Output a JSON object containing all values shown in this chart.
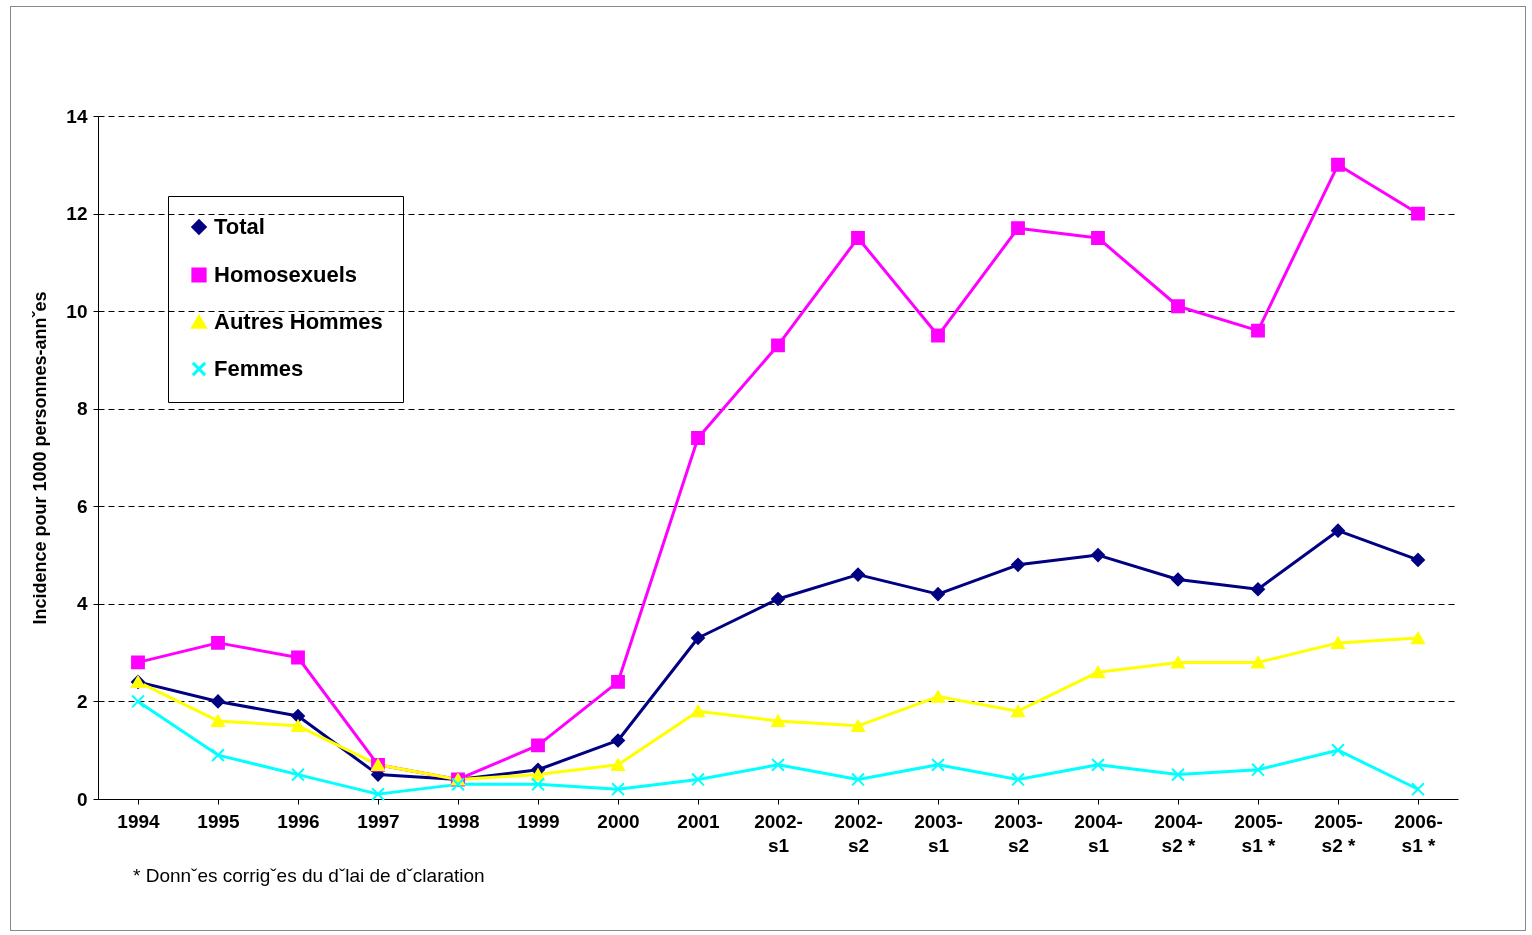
{
  "chart_data": {
    "type": "line",
    "ylabel": "Incidence pour 1000 personnes-annˇes",
    "categories": [
      "1994",
      "1995",
      "1996",
      "1997",
      "1998",
      "1999",
      "2000",
      "2001",
      "2002-\ns1",
      "2002-\ns2",
      "2003-\ns1",
      "2003-\ns2",
      "2004-\ns1",
      "2004-\ns2 *",
      "2005-\ns1 *",
      "2005-\ns2 *",
      "2006-\ns1 *"
    ],
    "series": [
      {
        "name": "Total",
        "color": "#000080",
        "marker": "diamond",
        "values": [
          2.4,
          2.0,
          1.7,
          0.5,
          0.4,
          0.6,
          1.2,
          3.3,
          4.1,
          4.6,
          4.2,
          4.8,
          5.0,
          4.5,
          4.3,
          5.5,
          4.9
        ]
      },
      {
        "name": "Homosexuels",
        "color": "#ff00ff",
        "marker": "square",
        "values": [
          2.8,
          3.2,
          2.9,
          0.7,
          0.4,
          1.1,
          2.4,
          7.4,
          9.3,
          11.5,
          9.5,
          11.7,
          11.5,
          10.1,
          9.6,
          13.0,
          12.0
        ]
      },
      {
        "name": "Autres Hommes",
        "color": "#ffff00",
        "marker": "triangle",
        "values": [
          2.4,
          1.6,
          1.5,
          0.7,
          0.4,
          0.5,
          0.7,
          1.8,
          1.6,
          1.5,
          2.1,
          1.8,
          2.6,
          2.8,
          2.8,
          3.2,
          3.3
        ]
      },
      {
        "name": "Femmes",
        "color": "#00ffff",
        "marker": "cross",
        "values": [
          2.0,
          0.9,
          0.5,
          0.1,
          0.3,
          0.3,
          0.2,
          0.4,
          0.7,
          0.4,
          0.7,
          0.4,
          0.7,
          0.5,
          0.6,
          1.0,
          0.2
        ]
      }
    ],
    "ylim": [
      0,
      14
    ],
    "yticks": [
      0,
      2,
      4,
      6,
      8,
      10,
      12,
      14
    ],
    "grid": "y",
    "legend": "top left",
    "line_style": "solid",
    "annotations": [
      "* Donnˇes corrigˇes du dˇlai de dˇclaration"
    ]
  }
}
